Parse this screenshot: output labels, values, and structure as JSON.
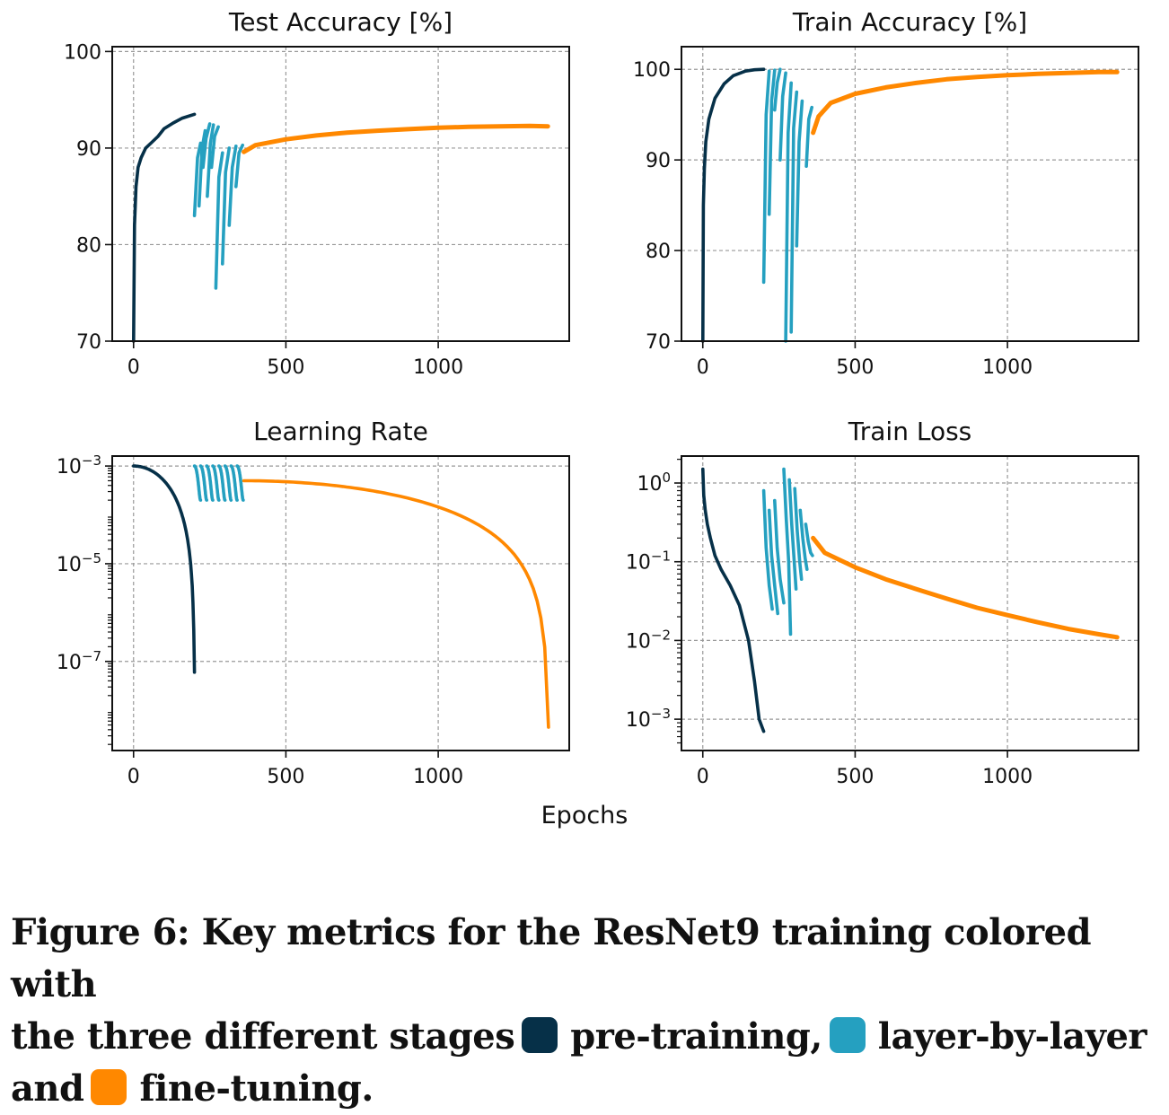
{
  "colors": {
    "pretraining": "#063048",
    "layerwise": "#25a0c0",
    "finetuning": "#ff8800"
  },
  "xlabel": "Epochs",
  "caption": {
    "line1": "Figure 6: Key metrics for the ResNet9 training colored with",
    "line2_a": "the three different stages",
    "stage1": "pre-training,",
    "stage2": "layer-by-layer",
    "line3_a": "and",
    "stage3": "fine-tuning."
  },
  "chart_data": [
    {
      "type": "line",
      "title": "Test Accuracy [%]",
      "xlim": [
        -70,
        1430
      ],
      "ylim": [
        70,
        100.5
      ],
      "xticks": [
        0,
        500,
        1000
      ],
      "yticks": [
        70,
        80,
        90,
        100
      ],
      "grid": true,
      "series": [
        {
          "stage": "pretraining",
          "x": [
            0,
            3,
            8,
            15,
            25,
            40,
            60,
            80,
            100,
            130,
            160,
            200
          ],
          "y": [
            70,
            82,
            86,
            88,
            89,
            90,
            90.6,
            91.2,
            92,
            92.6,
            93.1,
            93.5
          ]
        },
        {
          "stage": "layerwise",
          "x": [
            200,
            210,
            220
          ],
          "y": [
            83,
            89,
            90.5
          ]
        },
        {
          "stage": "layerwise",
          "x": [
            215,
            225,
            235
          ],
          "y": [
            84,
            90,
            91.8
          ]
        },
        {
          "stage": "layerwise",
          "x": [
            228,
            238,
            250
          ],
          "y": [
            88,
            91,
            92.5
          ]
        },
        {
          "stage": "layerwise",
          "x": [
            242,
            252,
            262
          ],
          "y": [
            85,
            90.5,
            92.4
          ]
        },
        {
          "stage": "layerwise",
          "x": [
            256,
            266,
            278
          ],
          "y": [
            88,
            91.2,
            92.2
          ]
        },
        {
          "stage": "layerwise",
          "x": [
            270,
            280,
            292
          ],
          "y": [
            75.5,
            87,
            89.5
          ]
        },
        {
          "stage": "layerwise",
          "x": [
            292,
            302,
            314
          ],
          "y": [
            78,
            87.5,
            90
          ]
        },
        {
          "stage": "layerwise",
          "x": [
            314,
            324,
            336
          ],
          "y": [
            82,
            88,
            90.2
          ]
        },
        {
          "stage": "layerwise",
          "x": [
            336,
            346,
            358
          ],
          "y": [
            86,
            89.5,
            90.3
          ]
        },
        {
          "stage": "finetuning",
          "x": [
            362,
            400,
            500,
            600,
            700,
            800,
            900,
            1000,
            1100,
            1200,
            1300,
            1360
          ],
          "y": [
            89.6,
            90.3,
            90.9,
            91.3,
            91.6,
            91.8,
            91.95,
            92.1,
            92.2,
            92.25,
            92.3,
            92.25
          ]
        }
      ]
    },
    {
      "type": "line",
      "title": "Train Accuracy [%]",
      "xlim": [
        -70,
        1430
      ],
      "ylim": [
        70,
        102.5
      ],
      "xticks": [
        0,
        500,
        1000
      ],
      "yticks": [
        70,
        80,
        90,
        100
      ],
      "grid": true,
      "series": [
        {
          "stage": "pretraining",
          "x": [
            0,
            2,
            5,
            10,
            20,
            40,
            70,
            100,
            140,
            170,
            200
          ],
          "y": [
            70,
            85,
            89,
            92,
            94.5,
            96.8,
            98.4,
            99.3,
            99.8,
            99.95,
            100
          ]
        },
        {
          "stage": "layerwise",
          "x": [
            200,
            208,
            218
          ],
          "y": [
            76.5,
            95,
            99.8
          ]
        },
        {
          "stage": "layerwise",
          "x": [
            218,
            226,
            236
          ],
          "y": [
            84,
            96.5,
            99.9
          ]
        },
        {
          "stage": "layerwise",
          "x": [
            236,
            244,
            254
          ],
          "y": [
            95.5,
            98.5,
            100
          ]
        },
        {
          "stage": "layerwise",
          "x": [
            254,
            262,
            272
          ],
          "y": [
            90,
            97,
            99.6
          ]
        },
        {
          "stage": "layerwise",
          "x": [
            272,
            280,
            290
          ],
          "y": [
            70,
            93,
            98.5
          ]
        },
        {
          "stage": "layerwise",
          "x": [
            290,
            298,
            308
          ],
          "y": [
            71,
            93.5,
            97.5
          ]
        },
        {
          "stage": "layerwise",
          "x": [
            308,
            316,
            326
          ],
          "y": [
            80.5,
            92,
            96.5
          ]
        },
        {
          "stage": "layerwise",
          "x": [
            340,
            348,
            358
          ],
          "y": [
            89.3,
            94.5,
            95.8
          ]
        },
        {
          "stage": "finetuning",
          "x": [
            362,
            380,
            420,
            500,
            600,
            700,
            800,
            900,
            1000,
            1100,
            1200,
            1300,
            1360
          ],
          "y": [
            93,
            94.8,
            96.3,
            97.3,
            98,
            98.5,
            98.9,
            99.15,
            99.35,
            99.5,
            99.6,
            99.7,
            99.7
          ]
        }
      ]
    },
    {
      "type": "line",
      "title": "Learning Rate",
      "yscale": "log",
      "xlim": [
        -70,
        1430
      ],
      "ylim": [
        1.5e-09,
        0.0016
      ],
      "xticks": [
        0,
        500,
        1000
      ],
      "yticks": [
        1e-07,
        1e-05,
        0.001
      ],
      "ytick_labels": [
        "10^-7",
        "10^-5",
        "10^-3"
      ],
      "grid": true,
      "series": [
        {
          "stage": "pretraining",
          "schedule": "cosine",
          "x": [
            0,
            200
          ],
          "y": [
            0.001,
            6e-08
          ]
        },
        {
          "stage": "layerwise",
          "schedule": "cosine",
          "x": [
            200,
            220
          ],
          "y": [
            0.001,
            0.0002
          ]
        },
        {
          "stage": "layerwise",
          "schedule": "cosine",
          "x": [
            220,
            240
          ],
          "y": [
            0.001,
            0.0002
          ]
        },
        {
          "stage": "layerwise",
          "schedule": "cosine",
          "x": [
            240,
            260
          ],
          "y": [
            0.001,
            0.0002
          ]
        },
        {
          "stage": "layerwise",
          "schedule": "cosine",
          "x": [
            260,
            280
          ],
          "y": [
            0.001,
            0.0002
          ]
        },
        {
          "stage": "layerwise",
          "schedule": "cosine",
          "x": [
            280,
            300
          ],
          "y": [
            0.001,
            0.0002
          ]
        },
        {
          "stage": "layerwise",
          "schedule": "cosine",
          "x": [
            300,
            320
          ],
          "y": [
            0.001,
            0.0002
          ]
        },
        {
          "stage": "layerwise",
          "schedule": "cosine",
          "x": [
            320,
            340
          ],
          "y": [
            0.001,
            0.0002
          ]
        },
        {
          "stage": "layerwise",
          "schedule": "cosine",
          "x": [
            340,
            360
          ],
          "y": [
            0.001,
            0.0002
          ]
        },
        {
          "stage": "finetuning",
          "schedule": "cosine",
          "x": [
            362,
            1362
          ],
          "y": [
            0.0005,
            4.5e-09
          ]
        }
      ]
    },
    {
      "type": "line",
      "title": "Train Loss",
      "yscale": "log",
      "xlim": [
        -70,
        1430
      ],
      "ylim": [
        0.0004,
        2.2
      ],
      "xticks": [
        0,
        500,
        1000
      ],
      "yticks": [
        0.001,
        0.01,
        0.1,
        1
      ],
      "ytick_labels": [
        "10^-3",
        "10^-2",
        "10^-1",
        "10^0"
      ],
      "grid": true,
      "series": [
        {
          "stage": "pretraining",
          "x": [
            0,
            3,
            8,
            15,
            25,
            40,
            60,
            90,
            120,
            150,
            170,
            185,
            200
          ],
          "y": [
            1.5,
            0.7,
            0.45,
            0.3,
            0.2,
            0.12,
            0.08,
            0.05,
            0.028,
            0.01,
            0.003,
            0.001,
            0.0007
          ]
        },
        {
          "stage": "layerwise",
          "x": [
            200,
            208,
            218,
            228
          ],
          "y": [
            0.8,
            0.15,
            0.05,
            0.025
          ]
        },
        {
          "stage": "layerwise",
          "x": [
            218,
            226,
            236,
            246
          ],
          "y": [
            0.45,
            0.12,
            0.05,
            0.022
          ]
        },
        {
          "stage": "layerwise",
          "x": [
            236,
            244,
            254,
            266
          ],
          "y": [
            0.6,
            0.15,
            0.06,
            0.03
          ]
        },
        {
          "stage": "layerwise",
          "x": [
            266,
            274,
            282,
            288
          ],
          "y": [
            1.5,
            0.35,
            0.1,
            0.012
          ]
        },
        {
          "stage": "layerwise",
          "x": [
            284,
            292,
            300,
            306
          ],
          "y": [
            1.1,
            0.3,
            0.1,
            0.045
          ]
        },
        {
          "stage": "layerwise",
          "x": [
            302,
            310,
            318,
            324
          ],
          "y": [
            0.85,
            0.25,
            0.1,
            0.06
          ]
        },
        {
          "stage": "layerwise",
          "x": [
            320,
            328,
            336,
            342
          ],
          "y": [
            0.45,
            0.2,
            0.11,
            0.08
          ]
        },
        {
          "stage": "layerwise",
          "x": [
            338,
            346,
            354,
            360
          ],
          "y": [
            0.3,
            0.18,
            0.13,
            0.12
          ]
        },
        {
          "stage": "finetuning",
          "x": [
            362,
            400,
            500,
            600,
            700,
            800,
            900,
            1000,
            1100,
            1200,
            1300,
            1360
          ],
          "y": [
            0.2,
            0.13,
            0.085,
            0.06,
            0.045,
            0.034,
            0.026,
            0.021,
            0.017,
            0.014,
            0.012,
            0.011
          ]
        }
      ]
    }
  ]
}
